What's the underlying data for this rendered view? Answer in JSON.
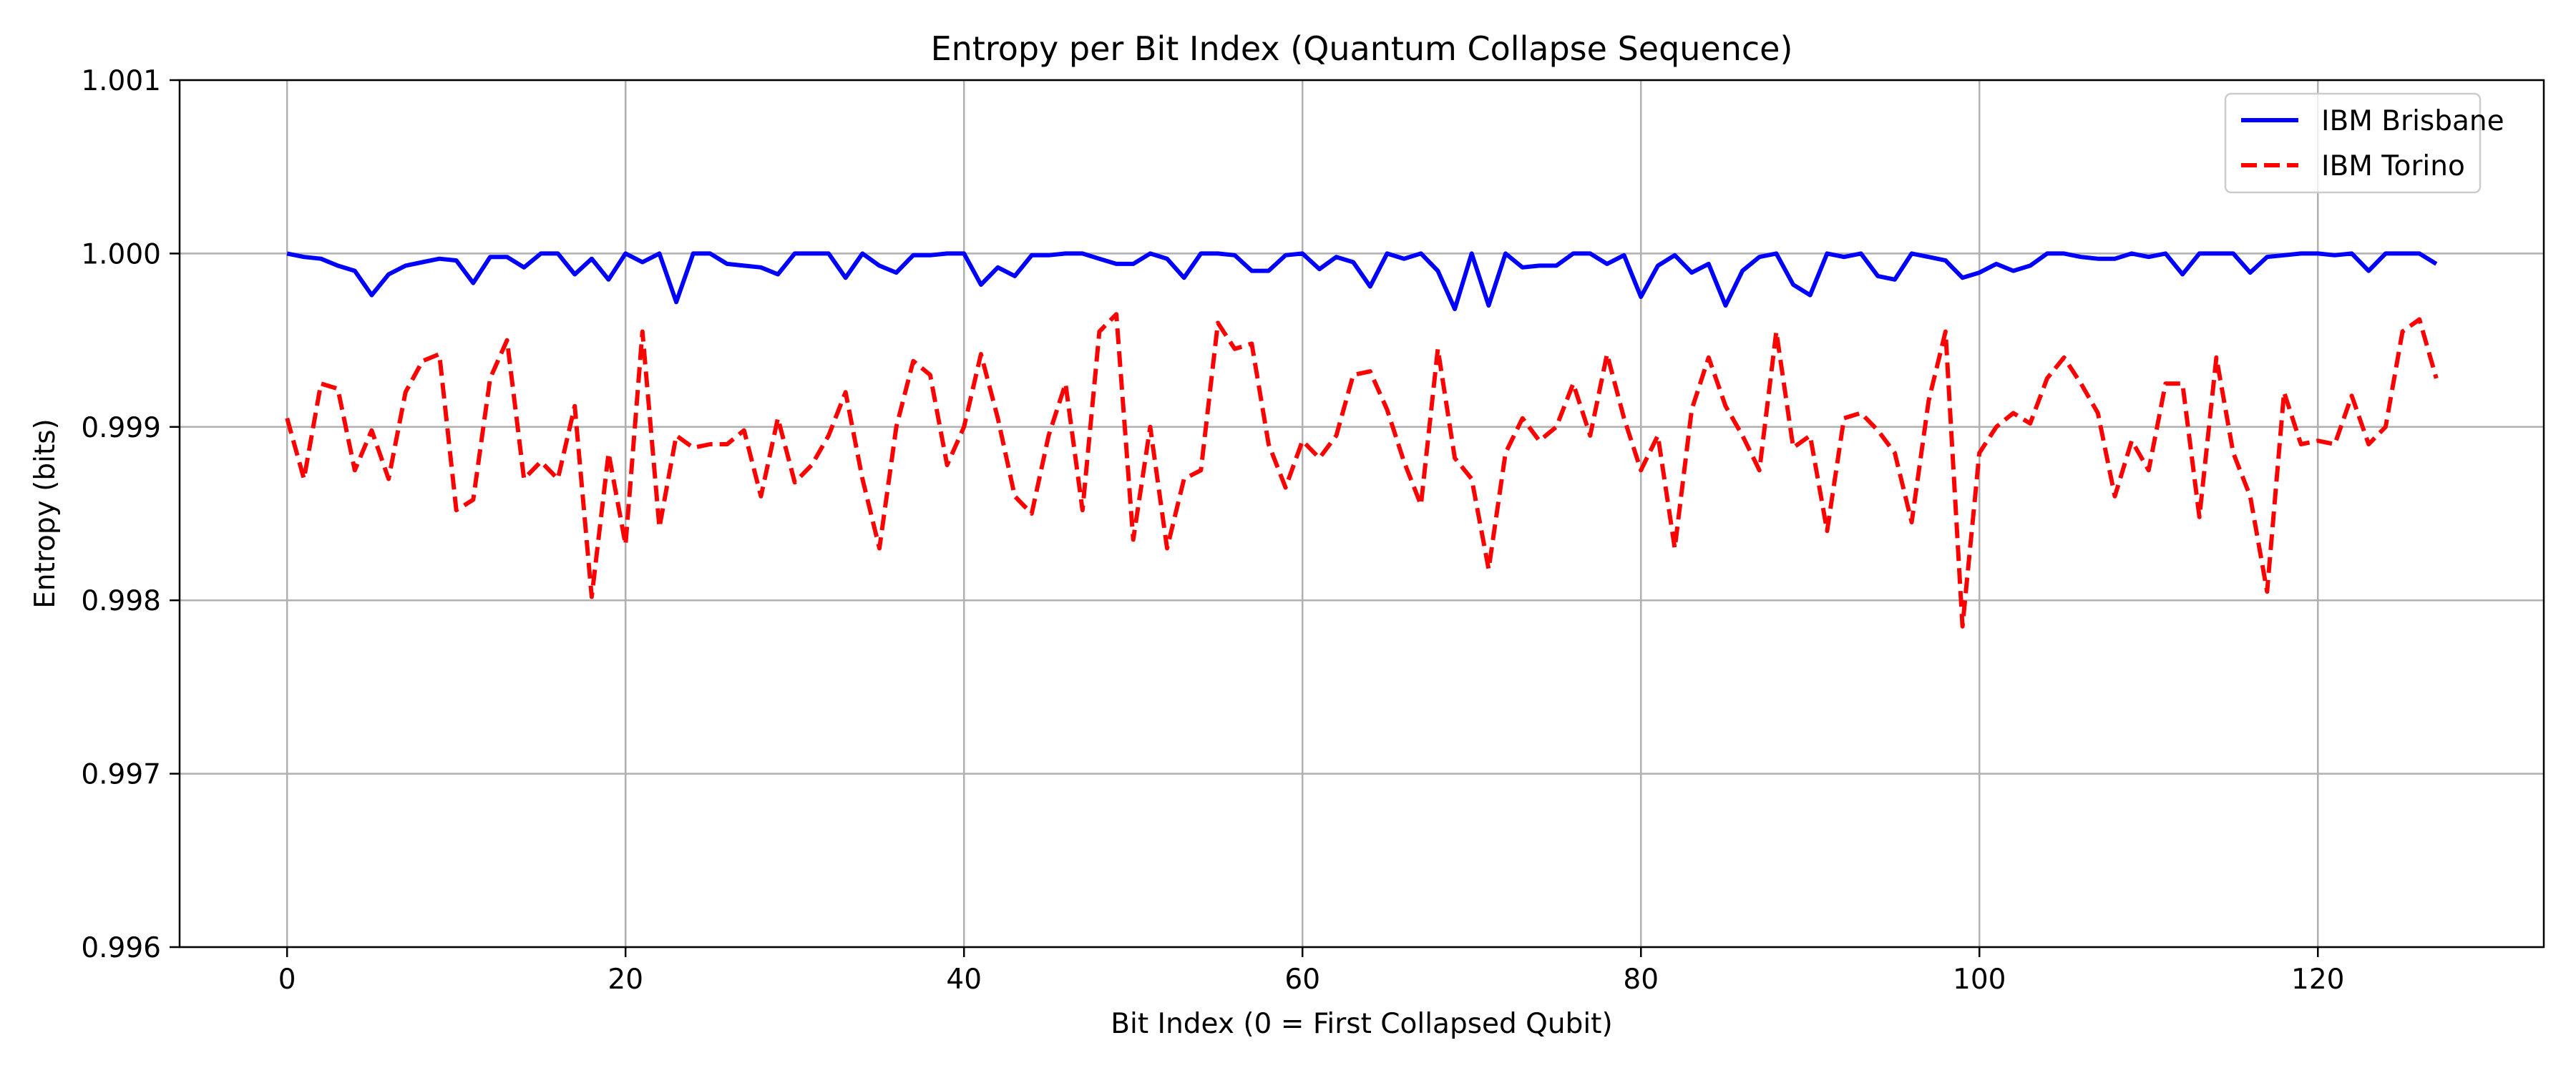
{
  "chart_data": {
    "type": "line",
    "title": "Entropy per Bit Index (Quantum Collapse Sequence)",
    "xlabel": "Bit Index (0 = First Collapsed Qubit)",
    "ylabel": "Entropy (bits)",
    "xlim": [
      -6.35,
      133.35
    ],
    "ylim": [
      0.996,
      1.001
    ],
    "xticks": [
      0,
      20,
      40,
      60,
      80,
      100,
      120
    ],
    "yticks": [
      0.996,
      0.997,
      0.998,
      0.999,
      1.0,
      1.001
    ],
    "xtick_labels": [
      "0",
      "20",
      "40",
      "60",
      "80",
      "100",
      "120"
    ],
    "ytick_labels": [
      "0.996",
      "0.997",
      "0.998",
      "0.999",
      "1.000",
      "1.001"
    ],
    "grid": true,
    "legend_position": "top-right",
    "series": [
      {
        "name": "IBM Brisbane",
        "color": "#0000ff",
        "style": "solid",
        "y": [
          1.0,
          0.99998,
          0.99997,
          0.99993,
          0.9999,
          0.99976,
          0.99988,
          0.99993,
          0.99995,
          0.99997,
          0.99996,
          0.99983,
          0.99998,
          0.99998,
          0.99992,
          1.0,
          1.0,
          0.99988,
          0.99997,
          0.99985,
          1.0,
          0.99995,
          1.0,
          0.99972,
          1.0,
          1.0,
          0.99994,
          0.99993,
          0.99992,
          0.99988,
          1.0,
          1.0,
          1.0,
          0.99986,
          1.0,
          0.99993,
          0.99989,
          0.99999,
          0.99999,
          1.0,
          1.0,
          0.99982,
          0.99992,
          0.99987,
          0.99999,
          0.99999,
          1.0,
          1.0,
          0.99997,
          0.99994,
          0.99994,
          1.0,
          0.99997,
          0.99986,
          1.0,
          1.0,
          0.99999,
          0.9999,
          0.9999,
          0.99999,
          1.0,
          0.99991,
          0.99998,
          0.99995,
          0.99981,
          1.0,
          0.99997,
          1.0,
          0.9999,
          0.99968,
          1.0,
          0.9997,
          1.0,
          0.99992,
          0.99993,
          0.99993,
          1.0,
          1.0,
          0.99994,
          0.99999,
          0.99975,
          0.99993,
          0.99999,
          0.99989,
          0.99994,
          0.9997,
          0.9999,
          0.99998,
          1.0,
          0.99982,
          0.99976,
          1.0,
          0.99998,
          1.0,
          0.99987,
          0.99985,
          1.0,
          0.99998,
          0.99996,
          0.99986,
          0.99989,
          0.99994,
          0.9999,
          0.99993,
          1.0,
          1.0,
          0.99998,
          0.99997,
          0.99997,
          1.0,
          0.99998,
          1.0,
          0.99988,
          1.0,
          1.0,
          1.0,
          0.99989,
          0.99998,
          0.99999,
          1.0,
          1.0,
          0.99999,
          1.0,
          0.9999,
          1.0,
          1.0,
          1.0,
          0.99994
        ]
      },
      {
        "name": "IBM Torino",
        "color": "#ff0000",
        "style": "dashed",
        "y": [
          0.99905,
          0.9987,
          0.99925,
          0.99922,
          0.99875,
          0.99898,
          0.9987,
          0.9992,
          0.99938,
          0.99942,
          0.99852,
          0.99858,
          0.99928,
          0.9995,
          0.9987,
          0.9988,
          0.9987,
          0.99912,
          0.99802,
          0.99885,
          0.99832,
          0.99955,
          0.99842,
          0.99895,
          0.99888,
          0.9989,
          0.9989,
          0.99898,
          0.9986,
          0.99905,
          0.99868,
          0.99878,
          0.99895,
          0.9992,
          0.9987,
          0.9983,
          0.999,
          0.99938,
          0.9993,
          0.99878,
          0.999,
          0.99942,
          0.99905,
          0.9986,
          0.9985,
          0.99895,
          0.99925,
          0.99852,
          0.99955,
          0.99965,
          0.99835,
          0.999,
          0.9983,
          0.9987,
          0.99875,
          0.9996,
          0.99945,
          0.99948,
          0.9989,
          0.99865,
          0.99892,
          0.99882,
          0.99895,
          0.9993,
          0.99932,
          0.9991,
          0.9988,
          0.99855,
          0.99945,
          0.99882,
          0.9987,
          0.99818,
          0.99885,
          0.99905,
          0.99892,
          0.999,
          0.99925,
          0.99895,
          0.99942,
          0.99905,
          0.99875,
          0.99895,
          0.9983,
          0.9991,
          0.9994,
          0.99912,
          0.99895,
          0.99875,
          0.99955,
          0.99888,
          0.99895,
          0.9984,
          0.99905,
          0.99908,
          0.99898,
          0.99885,
          0.99845,
          0.99915,
          0.99955,
          0.99785,
          0.99885,
          0.999,
          0.99908,
          0.99902,
          0.99928,
          0.9994,
          0.99925,
          0.99908,
          0.9986,
          0.99892,
          0.99875,
          0.99925,
          0.99925,
          0.99848,
          0.9994,
          0.99885,
          0.9986,
          0.99805,
          0.9992,
          0.9989,
          0.99892,
          0.9989,
          0.99918,
          0.9989,
          0.999,
          0.99955,
          0.99962,
          0.99928
        ]
      }
    ]
  }
}
